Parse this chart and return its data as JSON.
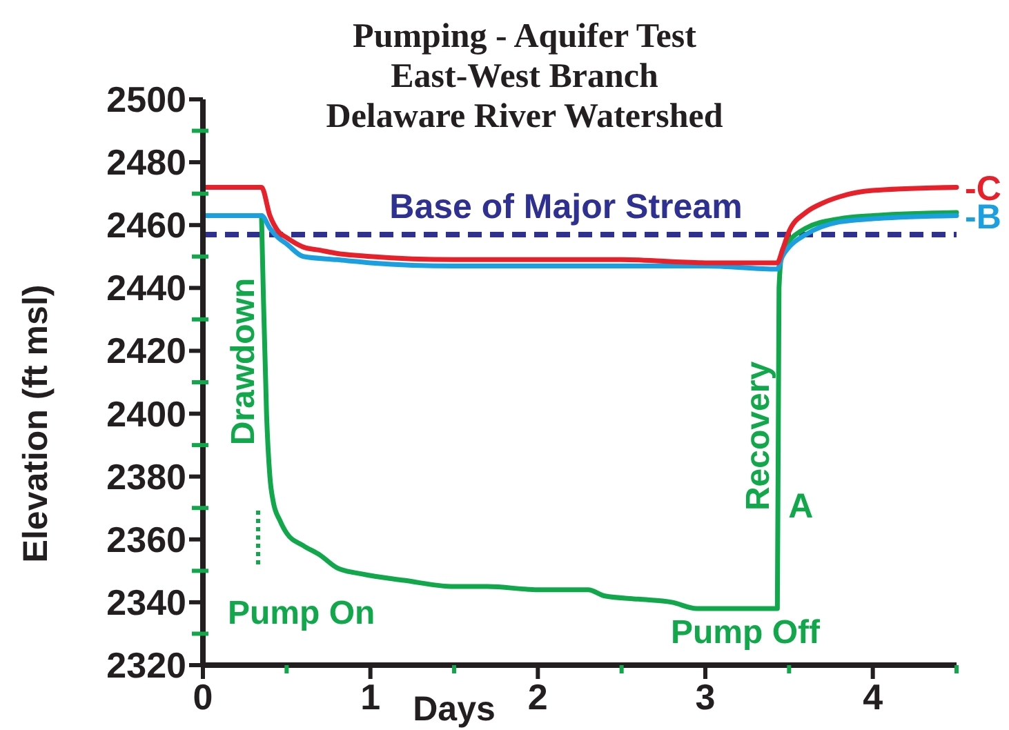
{
  "chart_data": {
    "type": "line",
    "title": "Pumping - Aquifer Test\nEast-West Branch\nDelaware River Watershed",
    "xlabel": "Days",
    "ylabel": "Elevation (ft msl)",
    "xlim": [
      0,
      4.5
    ],
    "xticks": [
      0,
      {
        "value": 0.5,
        "label": null
      },
      1,
      {
        "value": 1.5,
        "label": null
      },
      2,
      {
        "value": 2.5,
        "label": null
      },
      3,
      {
        "value": 3.5,
        "label": null
      },
      4,
      {
        "value": 4.5,
        "label": null
      }
    ],
    "ylim": [
      2320,
      2500
    ],
    "yticks": [
      2320,
      {
        "value": 2330,
        "label": null
      },
      2340,
      {
        "value": 2350,
        "label": null
      },
      2360,
      {
        "value": 2370,
        "label": null
      },
      2380,
      {
        "value": 2390,
        "label": null
      },
      2400,
      {
        "value": 2410,
        "label": null
      },
      2420,
      {
        "value": 2430,
        "label": null
      },
      2440,
      {
        "value": 2450,
        "label": null
      },
      2460,
      {
        "value": 2470,
        "label": null
      },
      2480,
      {
        "value": 2490,
        "label": null
      },
      2500
    ],
    "grid": false,
    "line_style": "solid",
    "ref_lines": [
      {
        "axis": "y",
        "value": 2457,
        "label": "Base of Major Stream",
        "color": "#2e3192",
        "line_style": "dashed"
      }
    ],
    "annotations": [
      "Drawdown",
      "Recovery",
      "Pump On",
      "Pump Off"
    ],
    "series": [
      {
        "name": "A",
        "color": "#10a84a",
        "x": [
          0.35,
          0.36,
          0.38,
          0.4,
          0.42,
          0.46,
          0.5,
          0.6,
          0.7,
          0.8,
          0.95,
          1.2,
          1.5,
          1.7,
          2.0,
          2.3,
          2.4,
          2.6,
          2.8,
          2.95,
          3.2,
          3.43,
          3.44,
          3.46,
          3.5,
          3.6,
          3.8,
          4.0,
          4.5
        ],
        "values": [
          2463,
          2440,
          2400,
          2380,
          2372,
          2366,
          2362,
          2358,
          2355,
          2351,
          2349,
          2347,
          2345,
          2345,
          2344,
          2344,
          2342,
          2341,
          2340,
          2338,
          2338,
          2338,
          2440,
          2452,
          2455,
          2459,
          2462,
          2463,
          2464
        ]
      },
      {
        "name": "-B",
        "color": "#1aa0e0",
        "x": [
          0,
          0.35,
          0.4,
          0.45,
          0.5,
          0.6,
          0.8,
          1.0,
          1.5,
          2.0,
          2.5,
          3.0,
          3.43,
          3.46,
          3.5,
          3.6,
          3.8,
          4.0,
          4.5
        ],
        "values": [
          2463,
          2463,
          2459,
          2456,
          2454,
          2450,
          2449,
          2448,
          2447,
          2447,
          2447,
          2447,
          2446,
          2450,
          2453,
          2457,
          2461,
          2462,
          2463
        ]
      },
      {
        "name": "-C",
        "color": "#e8202a",
        "x": [
          0,
          0.35,
          0.4,
          0.45,
          0.5,
          0.6,
          0.7,
          0.8,
          1.0,
          1.5,
          2.0,
          2.5,
          3.0,
          3.43,
          3.46,
          3.5,
          3.6,
          3.7,
          3.8,
          4.0,
          4.5
        ],
        "values": [
          2472,
          2472,
          2463,
          2458,
          2456,
          2453,
          2452,
          2451,
          2450,
          2449,
          2449,
          2449,
          2448,
          2448,
          2452,
          2458,
          2464,
          2467,
          2469,
          2471,
          2472
        ]
      }
    ]
  }
}
